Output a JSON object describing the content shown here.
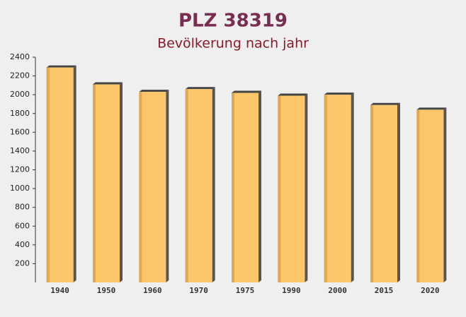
{
  "chart_data": {
    "type": "bar",
    "title": "PLZ 38319",
    "subtitle": "Bevölkerung nach jahr",
    "categories": [
      "1940",
      "1950",
      "1960",
      "1970",
      "1975",
      "1990",
      "2000",
      "2015",
      "2020"
    ],
    "values": [
      2290,
      2110,
      2030,
      2060,
      2020,
      1990,
      2000,
      1890,
      1840
    ],
    "color": "#fcc76a",
    "ylim": [
      0,
      2400
    ],
    "yticks": [
      200,
      400,
      600,
      800,
      1000,
      1200,
      1400,
      1600,
      1800,
      2000,
      2200,
      2400
    ],
    "grid": false
  }
}
